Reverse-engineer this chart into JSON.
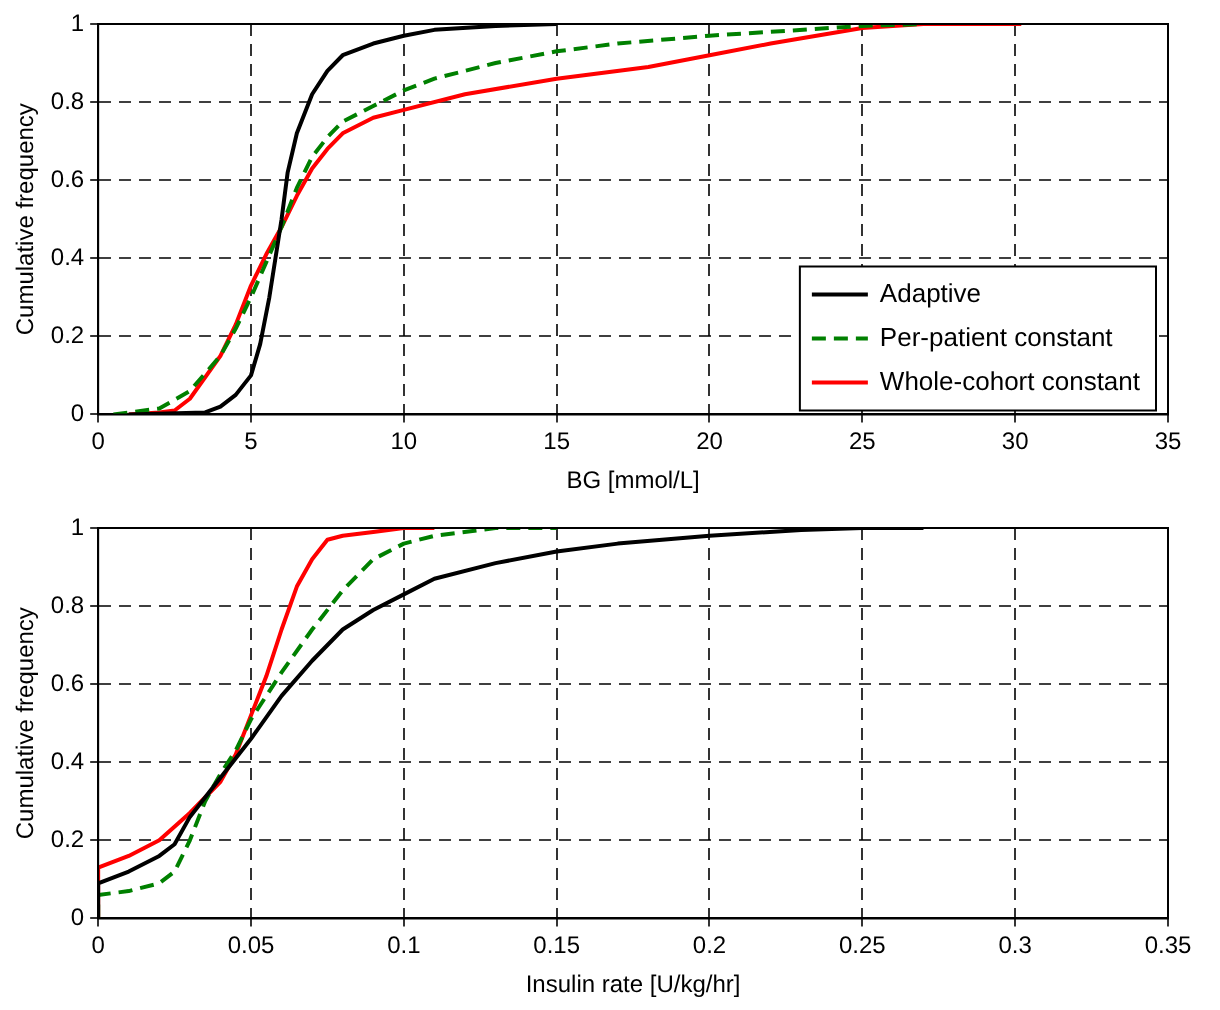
{
  "chart_data": [
    {
      "type": "line",
      "xlabel": "BG [mmol/L]",
      "ylabel": "Cumulative frequency",
      "xlim": [
        0,
        35
      ],
      "xticks": [
        0,
        5,
        10,
        15,
        20,
        25,
        30,
        35
      ],
      "ylim": [
        0,
        1
      ],
      "yticks": [
        0,
        0.2,
        0.4,
        0.6,
        0.8,
        1
      ],
      "grid": true,
      "legend": "bottom right",
      "marker": "none",
      "series": [
        {
          "name": "Adaptive",
          "color": "#000000",
          "line_style": "solid",
          "x": [
            1,
            3.5,
            4,
            4.5,
            5,
            5.3,
            5.6,
            5.8,
            6,
            6.2,
            6.5,
            7,
            7.5,
            8,
            9,
            10,
            11,
            13,
            15
          ],
          "values": [
            0,
            0.005,
            0.02,
            0.05,
            0.1,
            0.18,
            0.3,
            0.4,
            0.5,
            0.62,
            0.72,
            0.82,
            0.88,
            0.92,
            0.95,
            0.97,
            0.985,
            0.995,
            1
          ]
        },
        {
          "name": "Per-patient constant",
          "color": "#008000",
          "line_style": "dashed",
          "x": [
            0.5,
            1,
            2,
            3,
            4,
            4.5,
            5,
            5.5,
            6,
            6.5,
            7,
            7.5,
            8,
            9,
            10,
            11,
            12,
            13,
            15,
            17,
            20,
            22,
            25,
            27
          ],
          "values": [
            0,
            0.005,
            0.015,
            0.06,
            0.15,
            0.22,
            0.3,
            0.39,
            0.48,
            0.58,
            0.66,
            0.71,
            0.75,
            0.79,
            0.83,
            0.86,
            0.88,
            0.9,
            0.93,
            0.95,
            0.97,
            0.98,
            0.995,
            1
          ]
        },
        {
          "name": "Whole-cohort constant",
          "color": "#ff0000",
          "line_style": "solid",
          "x": [
            1,
            2,
            2.5,
            3,
            4,
            4.5,
            5,
            5.5,
            6,
            6.5,
            7,
            7.5,
            8,
            9,
            10,
            12,
            15,
            18,
            20,
            22,
            25,
            27,
            30.2
          ],
          "values": [
            0,
            0.005,
            0.01,
            0.04,
            0.15,
            0.23,
            0.33,
            0.41,
            0.48,
            0.56,
            0.63,
            0.68,
            0.72,
            0.76,
            0.78,
            0.82,
            0.86,
            0.89,
            0.92,
            0.95,
            0.99,
            1,
            1
          ]
        }
      ]
    },
    {
      "type": "line",
      "xlabel": "Insulin rate [U/kg/hr]",
      "ylabel": "Cumulative frequency",
      "xlim": [
        0,
        0.35
      ],
      "xticks": [
        0,
        0.05,
        0.1,
        0.15,
        0.2,
        0.25,
        0.3,
        0.35
      ],
      "ylim": [
        0,
        1
      ],
      "yticks": [
        0,
        0.2,
        0.4,
        0.6,
        0.8,
        1
      ],
      "grid": true,
      "marker": "none",
      "series": [
        {
          "color": "#000000",
          "line_style": "solid",
          "x": [
            0,
            0,
            0.01,
            0.02,
            0.025,
            0.03,
            0.04,
            0.05,
            0.06,
            0.07,
            0.08,
            0.09,
            0.1,
            0.11,
            0.13,
            0.15,
            0.17,
            0.2,
            0.23,
            0.25,
            0.27
          ],
          "values": [
            0,
            0.09,
            0.12,
            0.16,
            0.19,
            0.26,
            0.36,
            0.46,
            0.57,
            0.66,
            0.74,
            0.79,
            0.83,
            0.87,
            0.91,
            0.94,
            0.96,
            0.98,
            0.995,
            1,
            1
          ]
        },
        {
          "color": "#008000",
          "line_style": "dashed",
          "x": [
            0,
            0,
            0.01,
            0.02,
            0.025,
            0.03,
            0.035,
            0.04,
            0.045,
            0.05,
            0.06,
            0.07,
            0.08,
            0.09,
            0.1,
            0.11,
            0.13,
            0.15
          ],
          "values": [
            0,
            0.06,
            0.07,
            0.09,
            0.12,
            0.2,
            0.3,
            0.37,
            0.43,
            0.51,
            0.63,
            0.74,
            0.84,
            0.92,
            0.96,
            0.98,
            1,
            1
          ]
        },
        {
          "color": "#ff0000",
          "line_style": "solid",
          "x": [
            0,
            0,
            0.01,
            0.02,
            0.03,
            0.04,
            0.045,
            0.05,
            0.055,
            0.06,
            0.065,
            0.07,
            0.075,
            0.08,
            0.09,
            0.1,
            0.11
          ],
          "values": [
            0,
            0.13,
            0.16,
            0.2,
            0.27,
            0.35,
            0.42,
            0.52,
            0.62,
            0.74,
            0.85,
            0.92,
            0.97,
            0.98,
            0.99,
            1,
            1
          ]
        }
      ]
    }
  ]
}
